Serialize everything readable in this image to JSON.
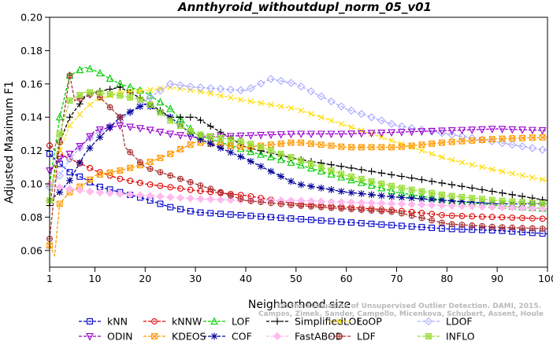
{
  "chart_data": {
    "type": "line",
    "title": "Annthyroid_withoutdupl_norm_05_v01",
    "xlabel": "Neighborhood size",
    "ylabel": "Adjusted Maximum F1",
    "xlim": [
      1,
      100
    ],
    "ylim": [
      0.05,
      0.2
    ],
    "xticks": [
      "1",
      "10",
      "20",
      "30",
      "40",
      "50",
      "60",
      "70",
      "80",
      "90",
      "100"
    ],
    "yticks": [
      "0.06",
      "0.08",
      "0.10",
      "0.12",
      "0.14",
      "0.16",
      "0.18",
      "0.20"
    ],
    "watermark": [
      "Campos, Zimek, Sander, Campello, Micenkova, Schubert, Assent, Houle",
      "On the Evaluation of Unsupervised Outlier Detection. DAMI, 2015."
    ],
    "grid": false,
    "legend_position": "bottom",
    "series": [
      {
        "name": "kNN",
        "color": "#0000cc",
        "marker": "square",
        "points": [
          [
            1,
            0.118
          ],
          [
            3,
            0.112
          ],
          [
            5,
            0.107
          ],
          [
            8,
            0.103
          ],
          [
            10,
            0.099
          ],
          [
            15,
            0.095
          ],
          [
            20,
            0.091
          ],
          [
            25,
            0.086
          ],
          [
            30,
            0.083
          ],
          [
            40,
            0.081
          ],
          [
            50,
            0.079
          ],
          [
            60,
            0.077
          ],
          [
            70,
            0.075
          ],
          [
            80,
            0.073
          ],
          [
            90,
            0.072
          ],
          [
            100,
            0.07
          ]
        ]
      },
      {
        "name": "kNNW",
        "color": "#e00000",
        "marker": "circle",
        "points": [
          [
            1,
            0.123
          ],
          [
            3,
            0.118
          ],
          [
            5,
            0.115
          ],
          [
            8,
            0.111
          ],
          [
            10,
            0.108
          ],
          [
            15,
            0.103
          ],
          [
            20,
            0.1
          ],
          [
            25,
            0.098
          ],
          [
            30,
            0.096
          ],
          [
            40,
            0.093
          ],
          [
            50,
            0.088
          ],
          [
            60,
            0.086
          ],
          [
            70,
            0.084
          ],
          [
            80,
            0.081
          ],
          [
            90,
            0.08
          ],
          [
            100,
            0.079
          ]
        ]
      },
      {
        "name": "LOF",
        "color": "#00cc00",
        "marker": "triangle-up",
        "points": [
          [
            1,
            0.1
          ],
          [
            3,
            0.14
          ],
          [
            5,
            0.165
          ],
          [
            8,
            0.17
          ],
          [
            10,
            0.168
          ],
          [
            15,
            0.16
          ],
          [
            20,
            0.155
          ],
          [
            25,
            0.145
          ],
          [
            30,
            0.13
          ],
          [
            40,
            0.12
          ],
          [
            50,
            0.112
          ],
          [
            60,
            0.103
          ],
          [
            70,
            0.095
          ],
          [
            80,
            0.09
          ],
          [
            90,
            0.087
          ],
          [
            100,
            0.085
          ]
        ]
      },
      {
        "name": "SimplifiedLOF",
        "color": "#000000",
        "marker": "plus",
        "points": [
          [
            1,
            0.087
          ],
          [
            3,
            0.125
          ],
          [
            5,
            0.14
          ],
          [
            8,
            0.152
          ],
          [
            10,
            0.155
          ],
          [
            15,
            0.158
          ],
          [
            20,
            0.15
          ],
          [
            25,
            0.14
          ],
          [
            30,
            0.14
          ],
          [
            40,
            0.122
          ],
          [
            50,
            0.115
          ],
          [
            60,
            0.11
          ],
          [
            70,
            0.105
          ],
          [
            80,
            0.1
          ],
          [
            90,
            0.095
          ],
          [
            100,
            0.09
          ]
        ]
      },
      {
        "name": "LoOP",
        "color": "#ffdd00",
        "marker": "x",
        "points": [
          [
            1,
            0.09
          ],
          [
            3,
            0.12
          ],
          [
            5,
            0.135
          ],
          [
            8,
            0.145
          ],
          [
            10,
            0.15
          ],
          [
            15,
            0.155
          ],
          [
            20,
            0.156
          ],
          [
            25,
            0.158
          ],
          [
            30,
            0.156
          ],
          [
            40,
            0.15
          ],
          [
            50,
            0.145
          ],
          [
            60,
            0.135
          ],
          [
            70,
            0.125
          ],
          [
            80,
            0.115
          ],
          [
            90,
            0.108
          ],
          [
            100,
            0.102
          ]
        ]
      },
      {
        "name": "LDOF",
        "color": "#aaaaff",
        "marker": "diamond",
        "points": [
          [
            1,
            0.098
          ],
          [
            3,
            0.105
          ],
          [
            5,
            0.115
          ],
          [
            8,
            0.125
          ],
          [
            10,
            0.13
          ],
          [
            15,
            0.138
          ],
          [
            20,
            0.15
          ],
          [
            25,
            0.16
          ],
          [
            30,
            0.158
          ],
          [
            40,
            0.156
          ],
          [
            45,
            0.163
          ],
          [
            50,
            0.16
          ],
          [
            60,
            0.145
          ],
          [
            70,
            0.135
          ],
          [
            80,
            0.13
          ],
          [
            90,
            0.125
          ],
          [
            100,
            0.12
          ]
        ]
      },
      {
        "name": "ODIN",
        "color": "#9900cc",
        "marker": "triangle-down",
        "points": [
          [
            1,
            0.108
          ],
          [
            3,
            0.115
          ],
          [
            5,
            0.118
          ],
          [
            8,
            0.125
          ],
          [
            10,
            0.132
          ],
          [
            15,
            0.135
          ],
          [
            20,
            0.133
          ],
          [
            25,
            0.13
          ],
          [
            30,
            0.128
          ],
          [
            40,
            0.129
          ],
          [
            50,
            0.13
          ],
          [
            60,
            0.13
          ],
          [
            70,
            0.131
          ],
          [
            80,
            0.132
          ],
          [
            90,
            0.133
          ],
          [
            100,
            0.132
          ]
        ]
      },
      {
        "name": "KDEOS",
        "color": "#ff9900",
        "marker": "square-x",
        "points": [
          [
            1,
            0.063
          ],
          [
            2,
            0.057
          ],
          [
            3,
            0.088
          ],
          [
            5,
            0.095
          ],
          [
            8,
            0.1
          ],
          [
            10,
            0.105
          ],
          [
            15,
            0.108
          ],
          [
            20,
            0.112
          ],
          [
            25,
            0.118
          ],
          [
            30,
            0.125
          ],
          [
            40,
            0.122
          ],
          [
            50,
            0.125
          ],
          [
            60,
            0.122
          ],
          [
            70,
            0.122
          ],
          [
            80,
            0.125
          ],
          [
            90,
            0.127
          ],
          [
            100,
            0.128
          ]
        ]
      },
      {
        "name": "COF",
        "color": "#000099",
        "marker": "asterisk",
        "points": [
          [
            1,
            0.09
          ],
          [
            3,
            0.095
          ],
          [
            5,
            0.102
          ],
          [
            8,
            0.118
          ],
          [
            10,
            0.125
          ],
          [
            15,
            0.14
          ],
          [
            20,
            0.148
          ],
          [
            25,
            0.14
          ],
          [
            30,
            0.128
          ],
          [
            40,
            0.115
          ],
          [
            50,
            0.1
          ],
          [
            60,
            0.095
          ],
          [
            70,
            0.092
          ],
          [
            80,
            0.09
          ],
          [
            90,
            0.088
          ],
          [
            100,
            0.088
          ]
        ]
      },
      {
        "name": "FastABOD",
        "color": "#ffbbee",
        "marker": "diamond-filled",
        "points": [
          [
            1,
            0.1
          ],
          [
            3,
            0.098
          ],
          [
            5,
            0.097
          ],
          [
            10,
            0.095
          ],
          [
            20,
            0.093
          ],
          [
            30,
            0.091
          ],
          [
            40,
            0.09
          ],
          [
            50,
            0.09
          ],
          [
            60,
            0.089
          ],
          [
            70,
            0.088
          ],
          [
            80,
            0.087
          ],
          [
            90,
            0.086
          ],
          [
            100,
            0.085
          ]
        ]
      },
      {
        "name": "LDF",
        "color": "#aa3333",
        "marker": "circle-plus",
        "points": [
          [
            1,
            0.067
          ],
          [
            3,
            0.125
          ],
          [
            5,
            0.165
          ],
          [
            6,
            0.15
          ],
          [
            10,
            0.155
          ],
          [
            15,
            0.14
          ],
          [
            16,
            0.122
          ],
          [
            20,
            0.11
          ],
          [
            25,
            0.105
          ],
          [
            30,
            0.1
          ],
          [
            40,
            0.09
          ],
          [
            50,
            0.087
          ],
          [
            60,
            0.085
          ],
          [
            70,
            0.083
          ],
          [
            80,
            0.076
          ],
          [
            90,
            0.074
          ],
          [
            100,
            0.073
          ]
        ]
      },
      {
        "name": "INFLO",
        "color": "#99dd33",
        "marker": "star-square",
        "points": [
          [
            1,
            0.09
          ],
          [
            3,
            0.13
          ],
          [
            5,
            0.15
          ],
          [
            8,
            0.155
          ],
          [
            10,
            0.155
          ],
          [
            15,
            0.153
          ],
          [
            20,
            0.15
          ],
          [
            25,
            0.138
          ],
          [
            30,
            0.13
          ],
          [
            40,
            0.125
          ],
          [
            50,
            0.115
          ],
          [
            60,
            0.105
          ],
          [
            70,
            0.098
          ],
          [
            80,
            0.093
          ],
          [
            90,
            0.09
          ],
          [
            100,
            0.088
          ]
        ]
      }
    ]
  }
}
